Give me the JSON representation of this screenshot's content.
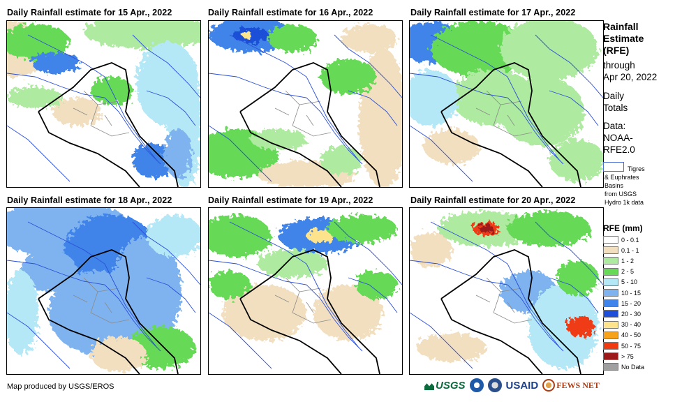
{
  "panels": [
    {
      "title": "Daily Rainfall estimate for 15 Apr., 2022",
      "pattern": "p15"
    },
    {
      "title": "Daily Rainfall estimate for 16 Apr., 2022",
      "pattern": "p16"
    },
    {
      "title": "Daily Rainfall estimate for 17 Apr., 2022",
      "pattern": "p17"
    },
    {
      "title": "Daily Rainfall estimate for 18 Apr., 2022",
      "pattern": "p18"
    },
    {
      "title": "Daily Rainfall estimate for 19 Apr., 2022",
      "pattern": "p19"
    },
    {
      "title": "Daily Rainfall estimate for 20 Apr., 2022",
      "pattern": "p20"
    }
  ],
  "sidebar": {
    "title_lines": [
      "Rainfall",
      "Estimate",
      "(RFE)"
    ],
    "through_lines": [
      "through",
      "Apr 20, 2022"
    ],
    "totals_lines": [
      "Daily",
      "Totals"
    ],
    "data_lines": [
      "Data:",
      "NOAA-",
      "RFE2.0"
    ],
    "basin_lines": [
      "Tigres",
      "& Euphrates",
      "Basins",
      "from USGS",
      "Hydro 1k data"
    ]
  },
  "legend": {
    "title": "RFE (mm)",
    "items": [
      {
        "label": "0 - 0.1",
        "color": "#ffffff"
      },
      {
        "label": "0.1 - 1",
        "color": "#f2dfc0"
      },
      {
        "label": "1 - 2",
        "color": "#aeeaa0"
      },
      {
        "label": "2 - 5",
        "color": "#66d957"
      },
      {
        "label": "5 - 10",
        "color": "#b4e8f6"
      },
      {
        "label": "10 - 15",
        "color": "#7fb3f0"
      },
      {
        "label": "15 - 20",
        "color": "#3f84ea"
      },
      {
        "label": "20 - 30",
        "color": "#1f4fd8"
      },
      {
        "label": "30 - 40",
        "color": "#fde38c"
      },
      {
        "label": "40 - 50",
        "color": "#f7a21b"
      },
      {
        "label": "50 - 75",
        "color": "#ef3a12"
      },
      {
        "label": "> 75",
        "color": "#9c1a1a"
      },
      {
        "label": "No Data",
        "color": "#a0a0a0"
      }
    ]
  },
  "credit": "Map produced by USGS/EROS",
  "logos": {
    "usgs": "USGS",
    "usaid": "USAID",
    "fews": "FEWS NET"
  }
}
